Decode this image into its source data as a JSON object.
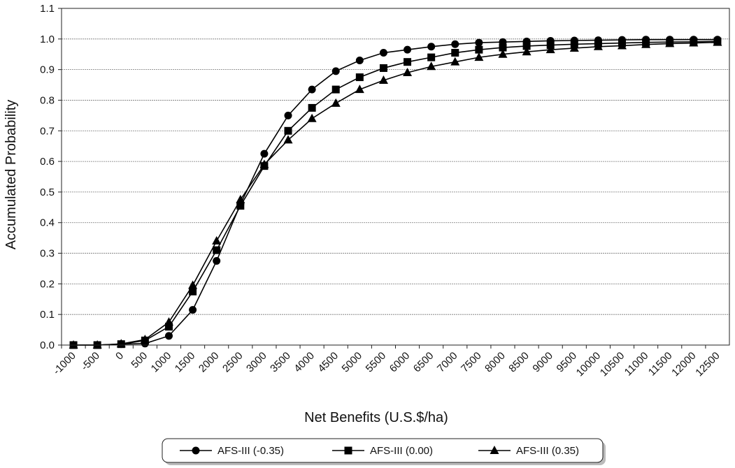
{
  "chart_data": {
    "type": "line",
    "xlabel": "Net Benefits (U.S.$/ha)",
    "ylabel": "Accumulated Probability",
    "ylim": [
      0.0,
      1.1
    ],
    "yticks": [
      "0.0",
      "0.1",
      "0.2",
      "0.3",
      "0.4",
      "0.5",
      "0.6",
      "0.7",
      "0.8",
      "0.9",
      "1.0",
      "1.1"
    ],
    "categories": [
      "-1000",
      "-500",
      "0",
      "500",
      "1000",
      "1500",
      "2000",
      "2500",
      "3000",
      "3500",
      "4000",
      "4500",
      "5000",
      "5500",
      "6000",
      "6500",
      "7000",
      "7500",
      "8000",
      "8500",
      "9000",
      "9500",
      "10000",
      "10500",
      "11000",
      "11500",
      "12000",
      "12500"
    ],
    "grid": "horizontal",
    "legend_position": "bottom",
    "series": [
      {
        "name": "AFS-III (-0.35)",
        "marker": "circle",
        "values": [
          0.0,
          0.0,
          0.003,
          0.005,
          0.03,
          0.115,
          0.275,
          0.46,
          0.625,
          0.75,
          0.835,
          0.895,
          0.93,
          0.955,
          0.965,
          0.975,
          0.983,
          0.988,
          0.99,
          0.992,
          0.994,
          0.995,
          0.996,
          0.997,
          0.998,
          0.998,
          0.998,
          0.998
        ]
      },
      {
        "name": "AFS-III (0.00)",
        "marker": "square",
        "values": [
          0.0,
          0.0,
          0.003,
          0.015,
          0.06,
          0.175,
          0.31,
          0.455,
          0.585,
          0.7,
          0.775,
          0.835,
          0.875,
          0.905,
          0.925,
          0.94,
          0.955,
          0.965,
          0.972,
          0.977,
          0.98,
          0.983,
          0.985,
          0.987,
          0.989,
          0.99,
          0.991,
          0.992
        ]
      },
      {
        "name": "AFS-III (0.35)",
        "marker": "triangle",
        "values": [
          0.0,
          0.0,
          0.004,
          0.018,
          0.075,
          0.195,
          0.34,
          0.475,
          0.59,
          0.67,
          0.74,
          0.79,
          0.835,
          0.865,
          0.89,
          0.91,
          0.925,
          0.94,
          0.95,
          0.958,
          0.965,
          0.97,
          0.975,
          0.978,
          0.982,
          0.985,
          0.987,
          0.989
        ]
      }
    ]
  }
}
